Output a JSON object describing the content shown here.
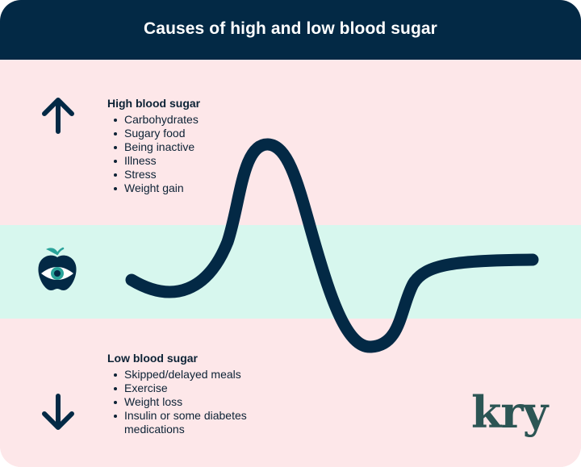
{
  "header": {
    "title": "Causes of high and low blood sugar"
  },
  "high": {
    "title": "High blood sugar",
    "items": [
      "Carbohydrates",
      "Sugary food",
      "Being inactive",
      "Illness",
      "Stress",
      "Weight gain"
    ],
    "icon": "arrow-up-icon"
  },
  "normal": {
    "icon": "apple-eye-icon"
  },
  "low": {
    "title": "Low blood sugar",
    "items": [
      "Skipped/delayed meals",
      "Exercise",
      "Weight loss",
      "Insulin or some diabetes medications"
    ],
    "icon": "arrow-down-icon"
  },
  "brand": {
    "logo": "kry"
  },
  "colors": {
    "navy": "#032945",
    "pink": "#fde7e9",
    "mint": "#d7f7ee",
    "teal": "#2aa39a",
    "logo": "#2c5554"
  }
}
